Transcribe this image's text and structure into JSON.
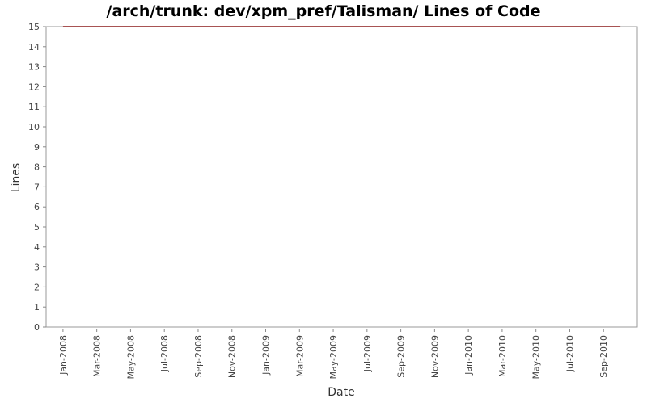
{
  "chart_data": {
    "type": "line",
    "title": "/arch/trunk: dev/xpm_pref/Talisman/ Lines of Code",
    "x_label": "Date",
    "y_label": "Lines",
    "x": [
      "2008-01",
      "2010-10"
    ],
    "series": [
      {
        "name": "Lines",
        "color": "#8b1a1a",
        "values": [
          15,
          15
        ]
      }
    ],
    "xlim": [
      "2007-12",
      "2010-11"
    ],
    "xticks": [
      {
        "value": "2008-01",
        "label": "Jan-2008"
      },
      {
        "value": "2008-03",
        "label": "Mar-2008"
      },
      {
        "value": "2008-05",
        "label": "May-2008"
      },
      {
        "value": "2008-07",
        "label": "Jul-2008"
      },
      {
        "value": "2008-09",
        "label": "Sep-2008"
      },
      {
        "value": "2008-11",
        "label": "Nov-2008"
      },
      {
        "value": "2009-01",
        "label": "Jan-2009"
      },
      {
        "value": "2009-03",
        "label": "Mar-2009"
      },
      {
        "value": "2009-05",
        "label": "May-2009"
      },
      {
        "value": "2009-07",
        "label": "Jul-2009"
      },
      {
        "value": "2009-09",
        "label": "Sep-2009"
      },
      {
        "value": "2009-11",
        "label": "Nov-2009"
      },
      {
        "value": "2010-01",
        "label": "Jan-2010"
      },
      {
        "value": "2010-03",
        "label": "Mar-2010"
      },
      {
        "value": "2010-05",
        "label": "May-2010"
      },
      {
        "value": "2010-07",
        "label": "Jul-2010"
      },
      {
        "value": "2010-09",
        "label": "Sep-2010"
      }
    ],
    "ylim": [
      0,
      15
    ],
    "yticks": [
      0,
      1,
      2,
      3,
      4,
      5,
      6,
      7,
      8,
      9,
      10,
      11,
      12,
      13,
      14,
      15
    ],
    "grid": false
  }
}
